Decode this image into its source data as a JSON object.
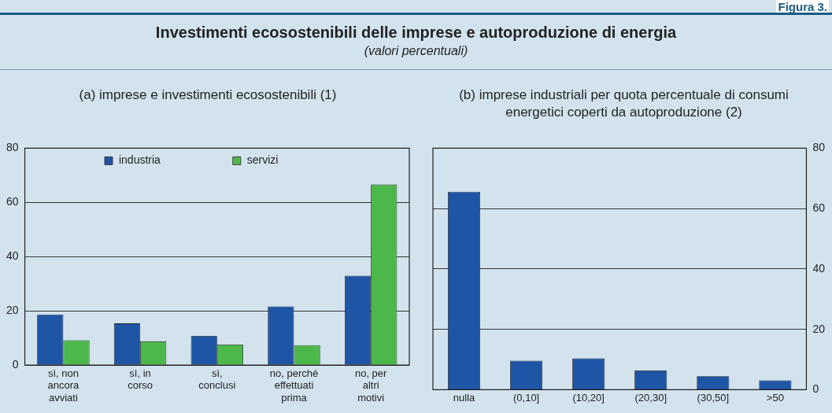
{
  "chart_data": [
    {
      "type": "other",
      "title": "Investimenti ecosostenibili delle imprese e autoproduzione di energia",
      "subtitle": "(valori percentuali)",
      "annotations": [
        "Figura 3."
      ]
    },
    {
      "type": "bar",
      "title": "(a) imprese e investimenti ecosostenibili (1)",
      "categories": [
        "sì, non ancora avviati",
        "sì, in corso",
        "sì, conclusi",
        "no, perché effettuati prima",
        "no, per altri motivi"
      ],
      "series": [
        {
          "name": "industria",
          "color": "#1f55a5",
          "values": [
            18.7,
            15.4,
            10.8,
            21.7,
            33.0
          ]
        },
        {
          "name": "servizi",
          "color": "#4cb84a",
          "values": [
            9.2,
            8.8,
            7.6,
            7.4,
            66.6
          ]
        }
      ],
      "ylim": [
        0,
        80
      ],
      "yticks": [
        0,
        20,
        40,
        60,
        80
      ],
      "grid": "y",
      "legend": "top"
    },
    {
      "type": "bar",
      "title": "(b) imprese industriali per quota percentuale di consumi energetici coperti da autoproduzione (2)",
      "categories": [
        "nulla",
        "(0,10]",
        "(10,20]",
        "(20,30]",
        "(30,50]",
        ">50"
      ],
      "series": [
        {
          "color": "#1f55a5",
          "axis": "y2",
          "values": [
            65.6,
            9.6,
            10.4,
            6.4,
            4.5,
            3.1
          ]
        }
      ],
      "y2lim": [
        0,
        80
      ],
      "y2ticks": [
        0,
        20,
        40,
        60,
        80
      ],
      "grid": "y"
    }
  ]
}
